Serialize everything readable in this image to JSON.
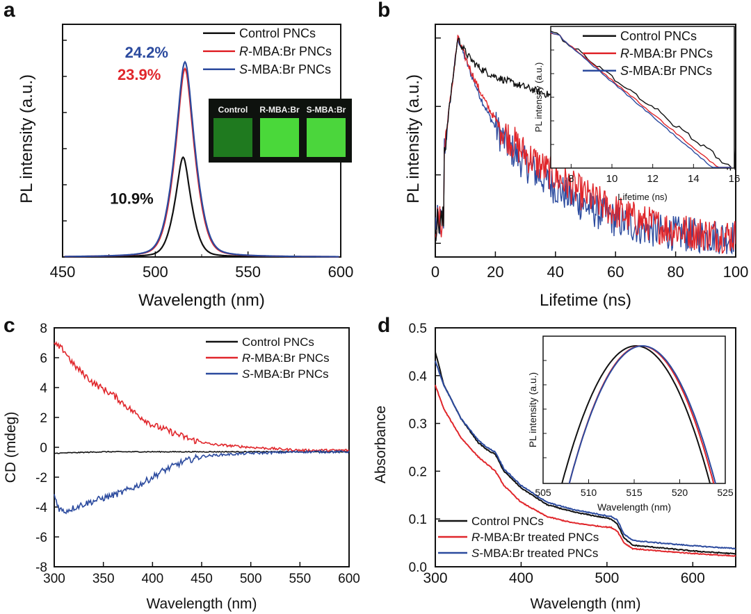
{
  "colors": {
    "control": "#111111",
    "r": "#e0262b",
    "s": "#2b4a9e",
    "axis": "#111111",
    "black_label": "#111111"
  },
  "chart_data": [
    {
      "panel": "a",
      "type": "line",
      "xlabel": "Wavelength (nm)",
      "ylabel": "PL intensity (a.u.)",
      "xlim": [
        450,
        600
      ],
      "ylim": [
        0,
        1.05
      ],
      "xticks": [
        450,
        500,
        550,
        600
      ],
      "y_tick_labels": false,
      "legend": {
        "placement": "top-right",
        "entries": [
          {
            "label": "Control PNCs",
            "key": "control"
          },
          {
            "prefix": "R",
            "label": "-MBA:Br PNCs",
            "key": "r"
          },
          {
            "prefix": "S",
            "label": "-MBA:Br PNCs",
            "key": "s"
          }
        ]
      },
      "series": [
        {
          "name": "Control PNCs",
          "key": "control",
          "center": 515,
          "peak": 0.45,
          "gamma": 7.5
        },
        {
          "name": "R-MBA:Br PNCs",
          "key": "r",
          "center": 516,
          "peak": 0.85,
          "gamma": 9
        },
        {
          "name": "S-MBA:Br PNCs",
          "key": "s",
          "center": 516,
          "peak": 0.88,
          "gamma": 9.2
        }
      ],
      "annotations": [
        {
          "text": "24.2%",
          "key": "s",
          "x": 507,
          "y": 0.9
        },
        {
          "text": "23.9%",
          "key": "r",
          "x": 503,
          "y": 0.8
        },
        {
          "text": "10.9%",
          "key": "black_label",
          "x": 499,
          "y": 0.24
        }
      ],
      "inset_photo": {
        "labels": [
          "Control",
          "R-MBA:Br",
          "S-MBA:Br"
        ]
      }
    },
    {
      "panel": "b",
      "type": "line",
      "xlabel": "Lifetime (ns)",
      "ylabel": "PL intensity (a.u.)",
      "xlim": [
        0,
        100
      ],
      "y_scale": "log",
      "xticks": [
        0,
        20,
        40,
        60,
        80,
        100
      ],
      "y_tick_labels": false,
      "series": [
        {
          "name": "Control PNCs",
          "key": "control",
          "peak_time": 7.5,
          "fast_tau": 3,
          "fast_amp": 0.6,
          "slow_tau": 30,
          "slow_amp": 0.4,
          "baseline": 0.0015
        },
        {
          "name": "R-MBA:Br PNCs",
          "key": "r",
          "peak_time": 7.5,
          "fast_tau": 3.5,
          "fast_amp": 0.9,
          "slow_tau": 13,
          "slow_amp": 0.1,
          "baseline": 0.0012
        },
        {
          "name": "S-MBA:Br PNCs",
          "key": "s",
          "peak_time": 7.5,
          "fast_tau": 3.3,
          "fast_amp": 0.92,
          "slow_tau": 12,
          "slow_amp": 0.08,
          "baseline": 0.0012
        }
      ],
      "inset": {
        "xlabel": "Lifetime (ns)",
        "ylabel": "PL intensity (a.u.)",
        "xlim": [
          7,
          16
        ],
        "xticks": [
          8,
          10,
          12,
          14,
          16
        ],
        "legend": {
          "placement": "top-right",
          "entries": [
            {
              "label": "Control PNCs",
              "key": "control"
            },
            {
              "prefix": "R",
              "label": "-MBA:Br PNCs",
              "key": "r"
            },
            {
              "prefix": "S",
              "label": "-MBA:Br PNCs",
              "key": "s"
            }
          ]
        }
      }
    },
    {
      "panel": "c",
      "type": "line",
      "xlabel": "Wavelength (nm)",
      "ylabel": "CD (mdeg)",
      "xlim": [
        300,
        600
      ],
      "ylim": [
        -8,
        8
      ],
      "xticks": [
        300,
        350,
        400,
        450,
        500,
        550,
        600
      ],
      "yticks": [
        -8,
        -6,
        -4,
        -2,
        0,
        2,
        4,
        6,
        8
      ],
      "legend": {
        "placement": "top-right",
        "entries": [
          {
            "label": "Control PNCs",
            "key": "control"
          },
          {
            "prefix": "R",
            "label": "-MBA:Br PNCs",
            "key": "r"
          },
          {
            "prefix": "S",
            "label": "-MBA:Br PNCs",
            "key": "s"
          }
        ]
      },
      "series": [
        {
          "name": "Control PNCs",
          "key": "control",
          "x": [
            300,
            350,
            400,
            450,
            500,
            550,
            600
          ],
          "y": [
            -0.4,
            -0.3,
            -0.3,
            -0.3,
            -0.3,
            -0.3,
            -0.3
          ]
        },
        {
          "name": "R-MBA:Br PNCs",
          "key": "r",
          "x": [
            300,
            310,
            320,
            340,
            360,
            380,
            400,
            420,
            440,
            460,
            480,
            500,
            550,
            600
          ],
          "y": [
            6.9,
            6.5,
            5.5,
            4.3,
            3.5,
            2.4,
            1.5,
            1.0,
            0.5,
            0.2,
            0.1,
            0.0,
            -0.2,
            -0.2
          ]
        },
        {
          "name": "S-MBA:Br PNCs",
          "key": "s",
          "x": [
            300,
            305,
            310,
            330,
            350,
            370,
            390,
            410,
            430,
            450,
            470,
            500,
            550,
            600
          ],
          "y": [
            -3.2,
            -4.1,
            -4.3,
            -3.8,
            -3.4,
            -3.0,
            -2.4,
            -1.6,
            -1.0,
            -0.6,
            -0.5,
            -0.4,
            -0.3,
            -0.3
          ]
        }
      ]
    },
    {
      "panel": "d",
      "type": "line",
      "xlabel": "Wavelength (nm)",
      "ylabel": "Absorbance",
      "xlim": [
        300,
        650
      ],
      "ylim": [
        0.0,
        0.5
      ],
      "xticks": [
        300,
        400,
        500,
        600
      ],
      "yticks": [
        0.0,
        0.1,
        0.2,
        0.3,
        0.4,
        0.5
      ],
      "legend": {
        "placement": "bottom-left",
        "entries": [
          {
            "label": "Control PNCs",
            "key": "control"
          },
          {
            "prefix": "R",
            "label": "-MBA:Br treated PNCs",
            "key": "r"
          },
          {
            "prefix": "S",
            "label": "-MBA:Br treated PNCs",
            "key": "s"
          }
        ]
      },
      "series": [
        {
          "name": "Control PNCs",
          "key": "control",
          "x": [
            300,
            310,
            330,
            350,
            360,
            370,
            380,
            400,
            430,
            460,
            490,
            505,
            512,
            520,
            530,
            560,
            600,
            650
          ],
          "y": [
            0.45,
            0.38,
            0.31,
            0.26,
            0.245,
            0.235,
            0.2,
            0.165,
            0.13,
            0.115,
            0.105,
            0.1,
            0.09,
            0.06,
            0.045,
            0.04,
            0.033,
            0.027
          ]
        },
        {
          "name": "R-MBA:Br treated PNCs",
          "key": "r",
          "x": [
            300,
            310,
            330,
            350,
            360,
            370,
            380,
            400,
            430,
            460,
            490,
            505,
            512,
            520,
            530,
            560,
            600,
            650
          ],
          "y": [
            0.38,
            0.33,
            0.27,
            0.23,
            0.215,
            0.2,
            0.17,
            0.135,
            0.105,
            0.092,
            0.085,
            0.082,
            0.075,
            0.05,
            0.038,
            0.033,
            0.028,
            0.022
          ]
        },
        {
          "name": "S-MBA:Br treated PNCs",
          "key": "s",
          "x": [
            300,
            310,
            330,
            350,
            360,
            370,
            380,
            400,
            430,
            460,
            490,
            505,
            512,
            520,
            530,
            560,
            600,
            650
          ],
          "y": [
            0.43,
            0.38,
            0.31,
            0.265,
            0.25,
            0.24,
            0.205,
            0.17,
            0.135,
            0.12,
            0.11,
            0.105,
            0.098,
            0.068,
            0.055,
            0.05,
            0.044,
            0.038
          ]
        }
      ],
      "inset": {
        "xlabel": "Wavelength (nm)",
        "ylabel": "PL intensity (a.u.)",
        "xlim": [
          505,
          525
        ],
        "xticks": [
          505,
          510,
          515,
          520,
          525
        ],
        "series": [
          {
            "key": "control",
            "center": 515.2,
            "halfwidth": 8.0
          },
          {
            "key": "r",
            "center": 515.8,
            "halfwidth": 7.8
          },
          {
            "key": "s",
            "center": 515.9,
            "halfwidth": 7.9
          }
        ]
      }
    }
  ],
  "panel_labels": [
    "a",
    "b",
    "c",
    "d"
  ]
}
